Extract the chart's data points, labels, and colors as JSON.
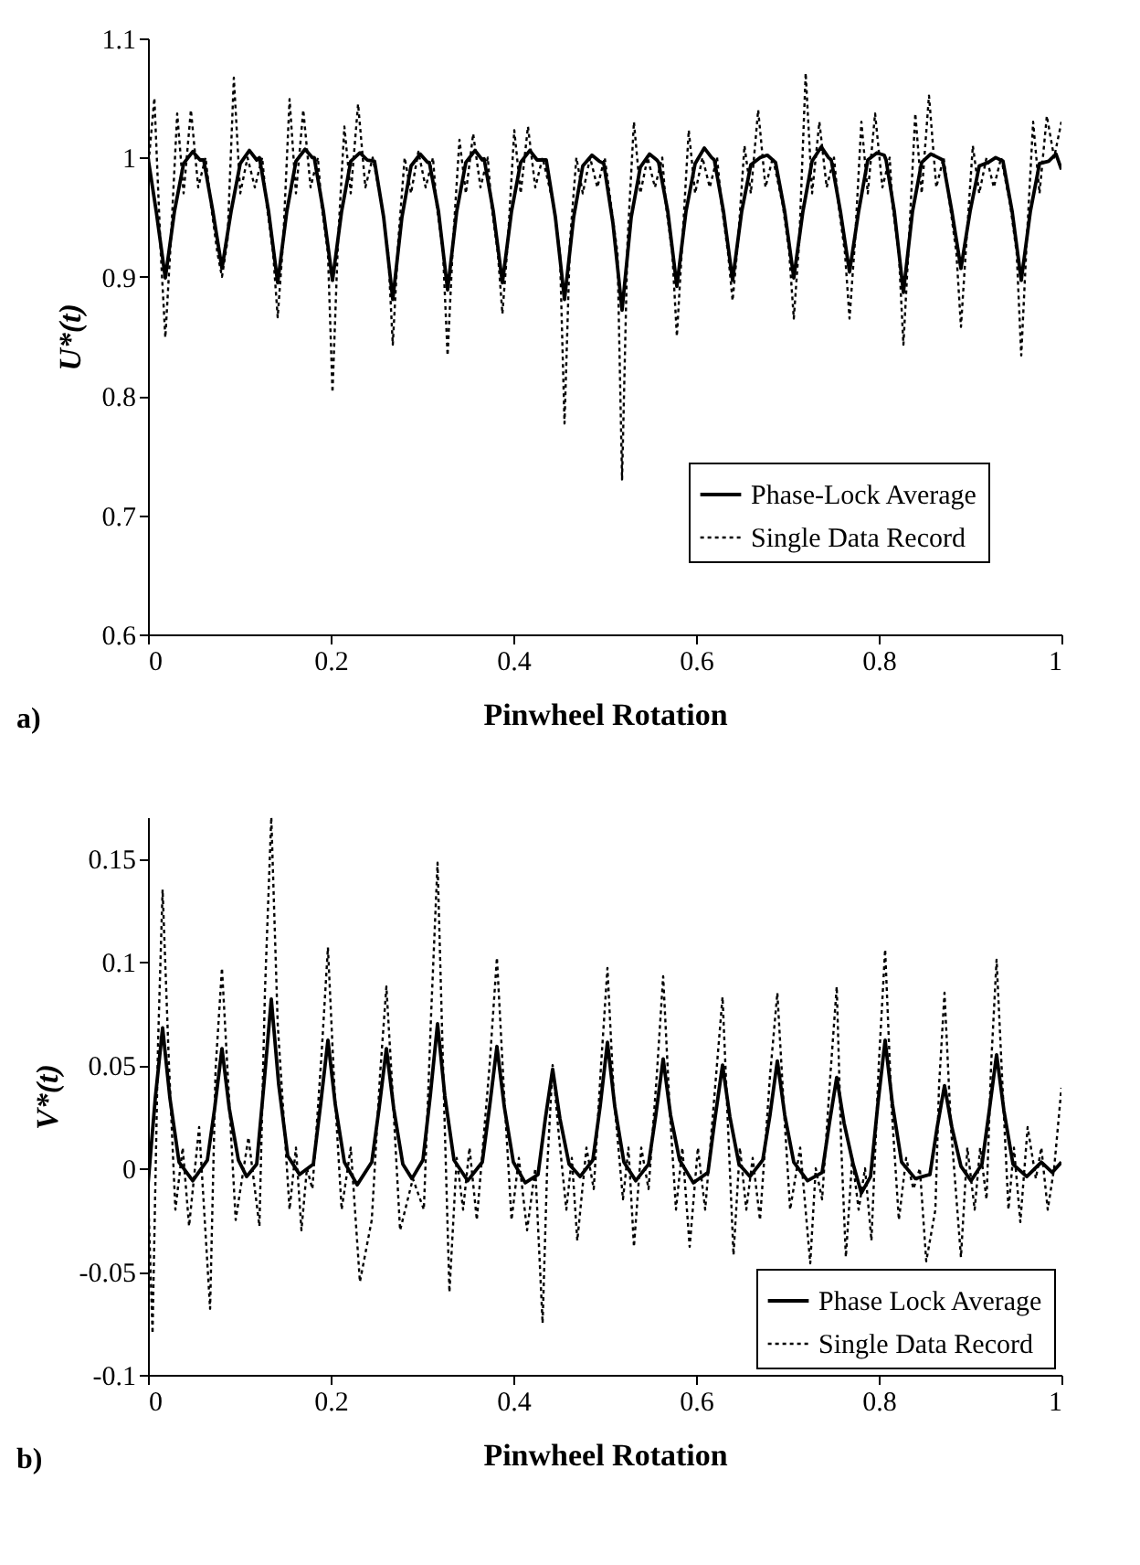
{
  "chart_data": [
    {
      "type": "line",
      "xlabel": "Pinwheel Rotation",
      "ylabel": "U*(t)",
      "annotations": [
        "a)"
      ],
      "xlim": [
        0,
        1
      ],
      "xticks": [
        0,
        0.2,
        0.4,
        0.6,
        0.8,
        1
      ],
      "ylim": [
        0.6,
        1.1
      ],
      "yticks": [
        0.6,
        0.7,
        0.8,
        0.9,
        1,
        1.1
      ],
      "legend": "bottom right",
      "series": [
        {
          "name": "Phase-Lock Average",
          "color": "#000000",
          "line_style": "solid",
          "x": [
            0,
            0.009,
            0.019,
            0.029,
            0.039,
            0.049,
            0.057,
            0.061,
            0.071,
            0.081,
            0.091,
            0.101,
            0.111,
            0.119,
            0.122,
            0.132,
            0.142,
            0.152,
            0.162,
            0.172,
            0.18,
            0.182,
            0.192,
            0.202,
            0.212,
            0.222,
            0.232,
            0.24,
            0.248,
            0.258,
            0.268,
            0.278,
            0.288,
            0.298,
            0.306,
            0.308,
            0.318,
            0.328,
            0.338,
            0.348,
            0.358,
            0.366,
            0.368,
            0.378,
            0.388,
            0.398,
            0.408,
            0.418,
            0.426,
            0.436,
            0.446,
            0.456,
            0.466,
            0.476,
            0.486,
            0.494,
            0.499,
            0.509,
            0.519,
            0.529,
            0.539,
            0.549,
            0.557,
            0.559,
            0.569,
            0.579,
            0.589,
            0.599,
            0.609,
            0.617,
            0.62,
            0.63,
            0.64,
            0.65,
            0.66,
            0.67,
            0.678,
            0.687,
            0.697,
            0.707,
            0.717,
            0.727,
            0.737,
            0.745,
            0.748,
            0.758,
            0.768,
            0.778,
            0.788,
            0.798,
            0.806,
            0.808,
            0.817,
            0.827,
            0.837,
            0.847,
            0.857,
            0.865,
            0.87,
            0.88,
            0.89,
            0.9,
            0.91,
            0.92,
            0.928,
            0.936,
            0.946,
            0.956,
            0.966,
            0.976,
            0.986,
            0.994,
            1.0
          ],
          "values": [
            1.0,
            0.955,
            0.899,
            0.955,
            0.995,
            1.005,
            0.998,
            0.998,
            0.955,
            0.907,
            0.955,
            0.995,
            1.006,
            0.998,
            1.0,
            0.955,
            0.895,
            0.955,
            0.997,
            1.007,
            1.0,
            1.0,
            0.955,
            0.897,
            0.955,
            0.997,
            1.004,
            0.998,
            0.997,
            0.95,
            0.881,
            0.95,
            0.993,
            1.003,
            0.996,
            0.996,
            0.955,
            0.889,
            0.955,
            0.996,
            1.006,
            0.998,
            0.999,
            0.955,
            0.895,
            0.955,
            0.996,
            1.006,
            0.998,
            0.998,
            0.95,
            0.881,
            0.95,
            0.993,
            1.002,
            0.997,
            0.995,
            0.945,
            0.872,
            0.95,
            0.992,
            1.003,
            0.998,
            0.996,
            0.955,
            0.892,
            0.955,
            0.995,
            1.008,
            1.0,
            0.998,
            0.955,
            0.897,
            0.955,
            0.994,
            1.0,
            1.002,
            0.996,
            0.955,
            0.899,
            0.955,
            0.997,
            1.009,
            1.0,
            0.998,
            0.955,
            0.904,
            0.955,
            0.998,
            1.004,
            1.002,
            0.998,
            0.955,
            0.887,
            0.955,
            0.996,
            1.003,
            1.0,
            0.998,
            0.955,
            0.907,
            0.955,
            0.993,
            0.996,
            1.0,
            0.997,
            0.955,
            0.897,
            0.955,
            0.995,
            0.997,
            1.003,
            0.99
          ]
        },
        {
          "name": "Single Data Record",
          "color": "#000000",
          "line_style": "dotted",
          "x": [
            0,
            0.007,
            0.014,
            0.019,
            0.025,
            0.032,
            0.039,
            0.047,
            0.055,
            0.063,
            0.069,
            0.076,
            0.081,
            0.087,
            0.094,
            0.101,
            0.109,
            0.117,
            0.125,
            0.13,
            0.137,
            0.142,
            0.148,
            0.155,
            0.162,
            0.17,
            0.178,
            0.186,
            0.19,
            0.197,
            0.202,
            0.208,
            0.215,
            0.222,
            0.23,
            0.238,
            0.246,
            0.256,
            0.263,
            0.268,
            0.274,
            0.281,
            0.288,
            0.296,
            0.304,
            0.312,
            0.316,
            0.323,
            0.328,
            0.334,
            0.341,
            0.348,
            0.356,
            0.364,
            0.372,
            0.376,
            0.383,
            0.388,
            0.394,
            0.401,
            0.408,
            0.416,
            0.424,
            0.432,
            0.444,
            0.451,
            0.456,
            0.462,
            0.469,
            0.476,
            0.484,
            0.492,
            0.5,
            0.507,
            0.514,
            0.519,
            0.525,
            0.532,
            0.539,
            0.547,
            0.555,
            0.563,
            0.567,
            0.574,
            0.579,
            0.585,
            0.592,
            0.599,
            0.607,
            0.615,
            0.623,
            0.628,
            0.635,
            0.64,
            0.646,
            0.653,
            0.66,
            0.668,
            0.676,
            0.684,
            0.695,
            0.702,
            0.707,
            0.713,
            0.72,
            0.727,
            0.735,
            0.743,
            0.751,
            0.756,
            0.763,
            0.768,
            0.774,
            0.781,
            0.788,
            0.796,
            0.804,
            0.812,
            0.815,
            0.822,
            0.827,
            0.833,
            0.84,
            0.847,
            0.855,
            0.863,
            0.871,
            0.878,
            0.885,
            0.89,
            0.896,
            0.903,
            0.91,
            0.918,
            0.926,
            0.934,
            0.944,
            0.951,
            0.956,
            0.962,
            0.969,
            0.976,
            0.984,
            0.992,
            1.0
          ],
          "values": [
            0.99,
            1.05,
            0.92,
            0.849,
            0.93,
            1.037,
            0.97,
            1.04,
            0.975,
            1.0,
            0.96,
            0.92,
            0.9,
            0.93,
            1.067,
            0.97,
            1.0,
            0.975,
            1.0,
            0.96,
            0.92,
            0.866,
            0.93,
            1.049,
            0.97,
            1.04,
            0.975,
            1.0,
            0.96,
            0.92,
            0.803,
            0.93,
            1.026,
            0.97,
            1.045,
            0.975,
            1.0,
            0.96,
            0.92,
            0.843,
            0.93,
            1.0,
            0.97,
            1.005,
            0.975,
            1.0,
            0.96,
            0.92,
            0.834,
            0.93,
            1.015,
            0.97,
            1.02,
            0.975,
            1.0,
            0.96,
            0.92,
            0.869,
            0.93,
            1.023,
            0.97,
            1.026,
            0.975,
            1.0,
            0.96,
            0.92,
            0.777,
            0.93,
            1.0,
            0.97,
            1.0,
            0.975,
            1.0,
            0.96,
            0.92,
            0.73,
            0.93,
            1.03,
            0.97,
            1.0,
            0.975,
            1.0,
            0.96,
            0.92,
            0.85,
            0.93,
            1.023,
            0.97,
            1.0,
            0.975,
            1.0,
            0.96,
            0.92,
            0.88,
            0.93,
            1.01,
            0.97,
            1.04,
            0.975,
            1.0,
            0.96,
            0.92,
            0.865,
            0.93,
            1.071,
            0.97,
            1.03,
            0.975,
            1.0,
            0.96,
            0.92,
            0.865,
            0.93,
            1.03,
            0.97,
            1.037,
            0.975,
            1.0,
            0.96,
            0.92,
            0.843,
            0.93,
            1.037,
            0.97,
            1.052,
            0.975,
            1.0,
            0.96,
            0.92,
            0.858,
            0.93,
            1.01,
            0.97,
            1.0,
            0.975,
            1.0,
            0.96,
            0.92,
            0.834,
            0.93,
            1.03,
            0.97,
            1.035,
            1.0,
            1.03
          ]
        }
      ]
    },
    {
      "type": "line",
      "xlabel": "Pinwheel Rotation",
      "ylabel": "V*(t)",
      "annotations": [
        "b)"
      ],
      "xlim": [
        0,
        1
      ],
      "xticks": [
        0,
        0.2,
        0.4,
        0.6,
        0.8,
        1
      ],
      "ylim": [
        -0.1,
        0.17
      ],
      "yticks": [
        -0.1,
        -0.05,
        0,
        0.05,
        0.1,
        0.15
      ],
      "legend": "bottom right",
      "series": [
        {
          "name": "Phase Lock Average",
          "color": "#000000",
          "line_style": "solid",
          "x": [
            0,
            0.008,
            0.016,
            0.024,
            0.034,
            0.049,
            0.065,
            0.073,
            0.081,
            0.089,
            0.099,
            0.108,
            0.119,
            0.127,
            0.135,
            0.143,
            0.153,
            0.166,
            0.181,
            0.189,
            0.197,
            0.205,
            0.215,
            0.229,
            0.245,
            0.253,
            0.261,
            0.269,
            0.279,
            0.289,
            0.301,
            0.309,
            0.317,
            0.325,
            0.335,
            0.35,
            0.366,
            0.374,
            0.382,
            0.39,
            0.4,
            0.413,
            0.427,
            0.435,
            0.443,
            0.451,
            0.461,
            0.473,
            0.487,
            0.495,
            0.503,
            0.511,
            0.521,
            0.534,
            0.548,
            0.556,
            0.564,
            0.572,
            0.582,
            0.597,
            0.613,
            0.621,
            0.629,
            0.637,
            0.647,
            0.659,
            0.673,
            0.681,
            0.689,
            0.697,
            0.707,
            0.722,
            0.738,
            0.746,
            0.754,
            0.762,
            0.772,
            0.781,
            0.791,
            0.799,
            0.807,
            0.815,
            0.825,
            0.84,
            0.856,
            0.864,
            0.872,
            0.88,
            0.89,
            0.901,
            0.913,
            0.921,
            0.929,
            0.937,
            0.947,
            0.962,
            0.978,
            0.99,
            1.0
          ],
          "values": [
            -0.008,
            0.034,
            0.068,
            0.034,
            0.003,
            -0.006,
            0.004,
            0.029,
            0.058,
            0.029,
            0.004,
            -0.004,
            0.002,
            0.041,
            0.082,
            0.041,
            0.006,
            -0.003,
            0.002,
            0.031,
            0.062,
            0.031,
            0.003,
            -0.008,
            0.003,
            0.029,
            0.058,
            0.029,
            0.002,
            -0.005,
            0.004,
            0.035,
            0.07,
            0.035,
            0.004,
            -0.006,
            0.003,
            0.03,
            0.059,
            0.03,
            0.003,
            -0.007,
            -0.003,
            0.024,
            0.048,
            0.024,
            0.002,
            -0.004,
            0.004,
            0.03,
            0.061,
            0.03,
            0.003,
            -0.006,
            0.002,
            0.026,
            0.053,
            0.026,
            0.004,
            -0.007,
            -0.002,
            0.025,
            0.05,
            0.025,
            0.002,
            -0.004,
            0.004,
            0.026,
            0.052,
            0.026,
            0.003,
            -0.006,
            -0.002,
            0.022,
            0.044,
            0.022,
            0.002,
            -0.012,
            -0.004,
            0.031,
            0.062,
            0.031,
            0.003,
            -0.005,
            -0.003,
            0.02,
            0.04,
            0.02,
            0.001,
            -0.006,
            0.002,
            0.028,
            0.055,
            0.028,
            0.002,
            -0.004,
            0.003,
            -0.002,
            0.003
          ]
        },
        {
          "name": "Single Data Record",
          "color": "#000000",
          "line_style": "dotted",
          "x": [
            0,
            0.005,
            0.011,
            0.016,
            0.023,
            0.03,
            0.038,
            0.045,
            0.056,
            0.068,
            0.074,
            0.081,
            0.088,
            0.096,
            0.11,
            0.122,
            0.128,
            0.135,
            0.142,
            0.155,
            0.162,
            0.168,
            0.174,
            0.18,
            0.19,
            0.197,
            0.204,
            0.212,
            0.222,
            0.232,
            0.245,
            0.254,
            0.261,
            0.268,
            0.276,
            0.29,
            0.302,
            0.31,
            0.317,
            0.323,
            0.33,
            0.338,
            0.345,
            0.352,
            0.36,
            0.374,
            0.382,
            0.39,
            0.398,
            0.406,
            0.415,
            0.424,
            0.432,
            0.437,
            0.443,
            0.45,
            0.458,
            0.464,
            0.47,
            0.48,
            0.488,
            0.496,
            0.503,
            0.51,
            0.52,
            0.526,
            0.532,
            0.54,
            0.548,
            0.557,
            0.564,
            0.571,
            0.578,
            0.585,
            0.593,
            0.602,
            0.61,
            0.621,
            0.629,
            0.635,
            0.641,
            0.648,
            0.655,
            0.662,
            0.67,
            0.681,
            0.689,
            0.696,
            0.703,
            0.714,
            0.725,
            0.731,
            0.738,
            0.747,
            0.754,
            0.759,
            0.764,
            0.771,
            0.778,
            0.785,
            0.792,
            0.8,
            0.807,
            0.814,
            0.822,
            0.83,
            0.838,
            0.845,
            0.852,
            0.862,
            0.866,
            0.872,
            0.879,
            0.89,
            0.897,
            0.905,
            0.911,
            0.918,
            0.923,
            0.929,
            0.936,
            0.942,
            0.948,
            0.955,
            0.963,
            0.972,
            0.978,
            0.985,
            0.992,
            1.0
          ],
          "values": [
            -0.01,
            -0.08,
            0.06,
            0.135,
            0.05,
            -0.02,
            0.01,
            -0.028,
            0.02,
            -0.068,
            0.048,
            0.097,
            0.04,
            -0.025,
            0.015,
            -0.028,
            0.085,
            0.17,
            0.07,
            -0.02,
            0.01,
            -0.03,
            0.0,
            -0.01,
            0.055,
            0.107,
            0.04,
            -0.02,
            0.01,
            -0.055,
            -0.025,
            0.045,
            0.088,
            0.035,
            -0.03,
            -0.005,
            -0.02,
            0.075,
            0.148,
            0.05,
            -0.06,
            0.005,
            -0.02,
            0.01,
            -0.025,
            0.05,
            0.102,
            0.035,
            -0.025,
            0.005,
            -0.03,
            0.0,
            -0.075,
            0.0,
            0.05,
            0.015,
            -0.02,
            0.005,
            -0.035,
            0.01,
            -0.01,
            0.05,
            0.097,
            0.035,
            -0.015,
            0.01,
            -0.038,
            0.01,
            -0.01,
            0.045,
            0.093,
            0.03,
            -0.02,
            0.01,
            -0.038,
            0.01,
            -0.02,
            0.04,
            0.083,
            0.02,
            -0.042,
            0.01,
            -0.02,
            0.005,
            -0.025,
            0.045,
            0.085,
            0.03,
            -0.02,
            0.01,
            -0.046,
            0.0,
            -0.015,
            0.045,
            0.088,
            0.01,
            -0.043,
            0.005,
            -0.02,
            0.0,
            -0.035,
            0.05,
            0.106,
            0.03,
            -0.025,
            0.005,
            -0.01,
            0.0,
            -0.045,
            -0.02,
            0.04,
            0.085,
            0.02,
            -0.043,
            0.01,
            -0.02,
            0.01,
            -0.015,
            0.05,
            0.101,
            0.035,
            -0.02,
            0.01,
            -0.026,
            0.02,
            -0.005,
            0.01,
            -0.02,
            0.0,
            0.039
          ]
        }
      ]
    }
  ]
}
